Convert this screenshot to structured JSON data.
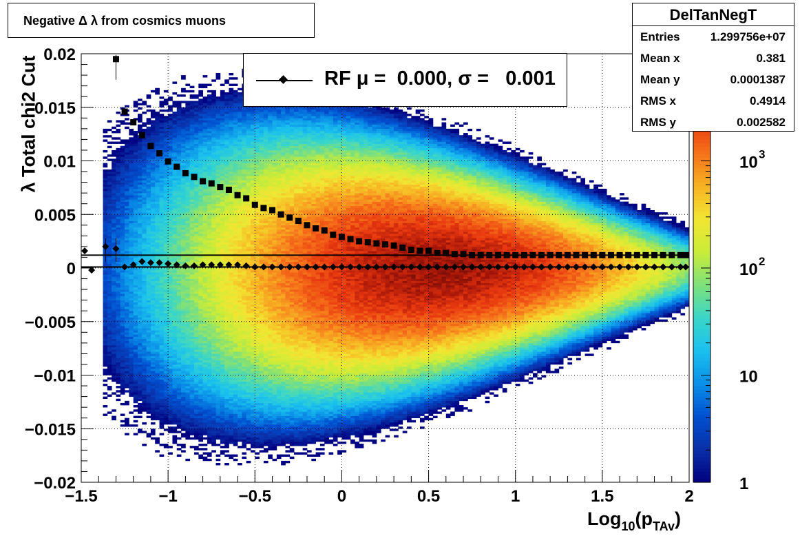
{
  "title": "Negative Δ λ from cosmics muons",
  "stats": {
    "name": "DelTanNegT",
    "rows": [
      {
        "label": "Entries",
        "value": "1.299756e+07"
      },
      {
        "label": "Mean x",
        "value": "0.381"
      },
      {
        "label": "Mean y",
        "value": "0.0001387"
      },
      {
        "label": "RMS x",
        "value": "0.4914"
      },
      {
        "label": "RMS y",
        "value": "0.002582"
      }
    ]
  },
  "legend": {
    "entry": "RF μ =  0.000, σ =   0.001"
  },
  "axes": {
    "ylabel": "λ  Total chi2 Cut",
    "xlabel_main": "Log",
    "xlabel_sub1": "10",
    "xlabel_paren_open": "(p",
    "xlabel_sub2": "TAv",
    "xlabel_paren_close": ")"
  },
  "colors": {
    "palette": [
      "#00007f",
      "#0a2fa8",
      "#0050d0",
      "#0a8fe8",
      "#1ac0ee",
      "#3ad6c8",
      "#7fe07a",
      "#c9ec38",
      "#f2e632",
      "#f7b223",
      "#f6711a",
      "#e8380f",
      "#a31408",
      "#3a0a06"
    ],
    "markers": "#000000",
    "grid": "#000000"
  },
  "chart_data": {
    "type": "heatmap",
    "xlim": [
      -1.5,
      2
    ],
    "ylim": [
      -0.02,
      0.02
    ],
    "x_ticks": [
      {
        "v": -1.5,
        "label": "−1.5"
      },
      {
        "v": -1,
        "label": "−1"
      },
      {
        "v": -0.5,
        "label": "−0.5"
      },
      {
        "v": 0,
        "label": "0"
      },
      {
        "v": 0.5,
        "label": "0.5"
      },
      {
        "v": 1,
        "label": "1"
      },
      {
        "v": 1.5,
        "label": "1.5"
      },
      {
        "v": 2,
        "label": "2"
      }
    ],
    "y_ticks": [
      {
        "v": 0.02,
        "label": "0.02"
      },
      {
        "v": 0.015,
        "label": "0.015"
      },
      {
        "v": 0.01,
        "label": "0.01"
      },
      {
        "v": 0.005,
        "label": "0.005"
      },
      {
        "v": 0,
        "label": "0"
      },
      {
        "v": -0.005,
        "label": "−0.005"
      },
      {
        "v": -0.01,
        "label": "−0.01"
      },
      {
        "v": -0.015,
        "label": "−0.015"
      },
      {
        "v": -0.02,
        "label": "−0.02"
      }
    ],
    "z_scale": "log",
    "z_range": [
      1,
      10000
    ],
    "z_ticks": [
      {
        "v": 1,
        "label": "1"
      },
      {
        "v": 10,
        "label": "10"
      },
      {
        "v": 100,
        "label": "10",
        "sup": "2"
      },
      {
        "v": 1000,
        "label": "10",
        "sup": "3"
      }
    ],
    "grid": true,
    "density_model": {
      "center_x": 0.55,
      "peak_log10": 3.7,
      "width_at_neg1": 0.011,
      "width_at_2": 0.0025
    },
    "sigma_series": {
      "x": [
        -1.3,
        -1.25,
        -1.2,
        -1.15,
        -1.1,
        -1.05,
        -1,
        -0.95,
        -0.9,
        -0.85,
        -0.8,
        -0.75,
        -0.7,
        -0.65,
        -0.6,
        -0.55,
        -0.5,
        -0.45,
        -0.4,
        -0.35,
        -0.3,
        -0.25,
        -0.2,
        -0.15,
        -0.1,
        -0.05,
        0,
        0.05,
        0.1,
        0.15,
        0.2,
        0.25,
        0.3,
        0.35,
        0.4,
        0.45,
        0.5,
        0.55,
        0.6,
        0.65,
        0.7,
        0.75,
        0.8,
        0.85,
        0.9,
        0.95,
        1,
        1.05,
        1.1,
        1.15,
        1.2,
        1.25,
        1.3,
        1.35,
        1.4,
        1.45,
        1.5,
        1.55,
        1.6,
        1.65,
        1.7,
        1.75,
        1.8,
        1.85,
        1.9,
        1.95,
        1.98
      ],
      "y": [
        0.0195,
        0.0146,
        0.0136,
        0.0124,
        0.0114,
        0.0107,
        0.00995,
        0.00945,
        0.00885,
        0.0085,
        0.0081,
        0.0079,
        0.00755,
        0.0073,
        0.0068,
        0.0065,
        0.0059,
        0.0056,
        0.0054,
        0.005,
        0.0047,
        0.0044,
        0.004,
        0.0037,
        0.0035,
        0.0031,
        0.0029,
        0.0027,
        0.0025,
        0.0024,
        0.0023,
        0.0022,
        0.0021,
        0.0019,
        0.0017,
        0.0016,
        0.0016,
        0.0014,
        0.0014,
        0.0013,
        0.0013,
        0.0012,
        0.0012,
        0.0012,
        0.0012,
        0.0012,
        0.0012,
        0.0012,
        0.0012,
        0.0012,
        0.0012,
        0.0012,
        0.0012,
        0.0012,
        0.0012,
        0.0012,
        0.0012,
        0.0012,
        0.0012,
        0.0012,
        0.0012,
        0.0012,
        0.0012,
        0.0012,
        0.0012,
        0.0012,
        0.0012
      ]
    },
    "mean_series": {
      "x": [
        -1.48,
        -1.44,
        -1.36,
        -1.3,
        -1.25,
        -1.2,
        -1.15,
        -1.1,
        -1.05,
        -1,
        -0.95,
        -0.9,
        -0.85,
        -0.8,
        -0.75,
        -0.7,
        -0.65,
        -0.6,
        -0.55,
        -0.5,
        -0.45,
        -0.4,
        -0.35,
        -0.3,
        -0.25,
        -0.2,
        -0.15,
        -0.1,
        -0.05,
        0,
        0.05,
        0.1,
        0.15,
        0.2,
        0.25,
        0.3,
        0.35,
        0.4,
        0.45,
        0.5,
        0.55,
        0.6,
        0.65,
        0.7,
        0.75,
        0.8,
        0.85,
        0.9,
        0.95,
        1,
        1.05,
        1.1,
        1.15,
        1.2,
        1.25,
        1.3,
        1.35,
        1.4,
        1.45,
        1.5,
        1.55,
        1.6,
        1.65,
        1.7,
        1.75,
        1.8,
        1.85,
        1.9,
        1.95,
        1.98
      ],
      "y": [
        0.0016,
        -0.0002,
        0.002,
        0.0018,
        0.0001,
        0.0003,
        0.0006,
        0.0005,
        0.0005,
        0.0004,
        0.0003,
        0.0002,
        0.0002,
        0.0003,
        0.0003,
        0.0003,
        0.0003,
        0.0003,
        0.0002,
        0.0001,
        0.0001,
        0.0001,
        0.0001,
        0.0001,
        0.0001,
        0.0001,
        0.0001,
        0.0001,
        0.0001,
        0.0001,
        0.0001,
        0.0001,
        0.0001,
        0.0001,
        0.0001,
        0.0001,
        0.0001,
        0.0001,
        0.0001,
        0.0001,
        0.0001,
        0.0001,
        0.0001,
        0.0001,
        0.0001,
        0.0001,
        0.0001,
        0.0001,
        0.0001,
        0.0001,
        0.0001,
        0.0001,
        0.0001,
        0.0001,
        0.0001,
        0.0001,
        0.0001,
        0.0001,
        0.0001,
        0.0001,
        0.0001,
        0.0001,
        0.0001,
        0.0001,
        0.0001,
        0.0001,
        0.0001,
        0.0001,
        0.0001,
        0.0001
      ]
    },
    "fit_lines": [
      {
        "y": 0.0012
      },
      {
        "y": 0.0001
      }
    ]
  }
}
